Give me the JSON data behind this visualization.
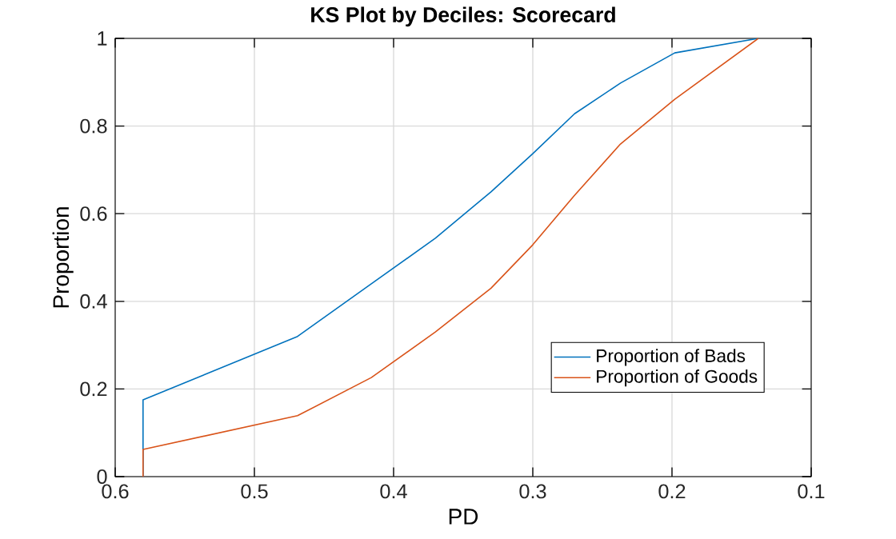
{
  "chart_data": {
    "type": "line",
    "title": "KS Plot by Deciles: Scorecard",
    "xlabel": "PD",
    "ylabel": "Proportion",
    "xlim": [
      0.6,
      0.1
    ],
    "ylim": [
      0,
      1
    ],
    "xticks": [
      0.6,
      0.5,
      0.4,
      0.3,
      0.2,
      0.1
    ],
    "yticks": [
      0,
      0.2,
      0.4,
      0.6,
      0.8,
      1
    ],
    "grid": true,
    "legend": "bottom right",
    "line_style": "solid",
    "marker": "none",
    "series": [
      {
        "name": "Proportion of Bads",
        "color": "#0072bd",
        "x": [
          0.58,
          0.58,
          0.469,
          0.416,
          0.37,
          0.33,
          0.3,
          0.27,
          0.237,
          0.198,
          0.138
        ],
        "values": [
          0,
          0.175,
          0.32,
          0.44,
          0.544,
          0.65,
          0.737,
          0.828,
          0.898,
          0.967,
          1.0
        ]
      },
      {
        "name": "Proportion of Goods",
        "color": "#d95319",
        "x": [
          0.58,
          0.58,
          0.469,
          0.416,
          0.37,
          0.33,
          0.3,
          0.27,
          0.237,
          0.198,
          0.138
        ],
        "values": [
          0,
          0.062,
          0.139,
          0.226,
          0.33,
          0.43,
          0.529,
          0.642,
          0.759,
          0.861,
          1.0
        ]
      }
    ]
  }
}
